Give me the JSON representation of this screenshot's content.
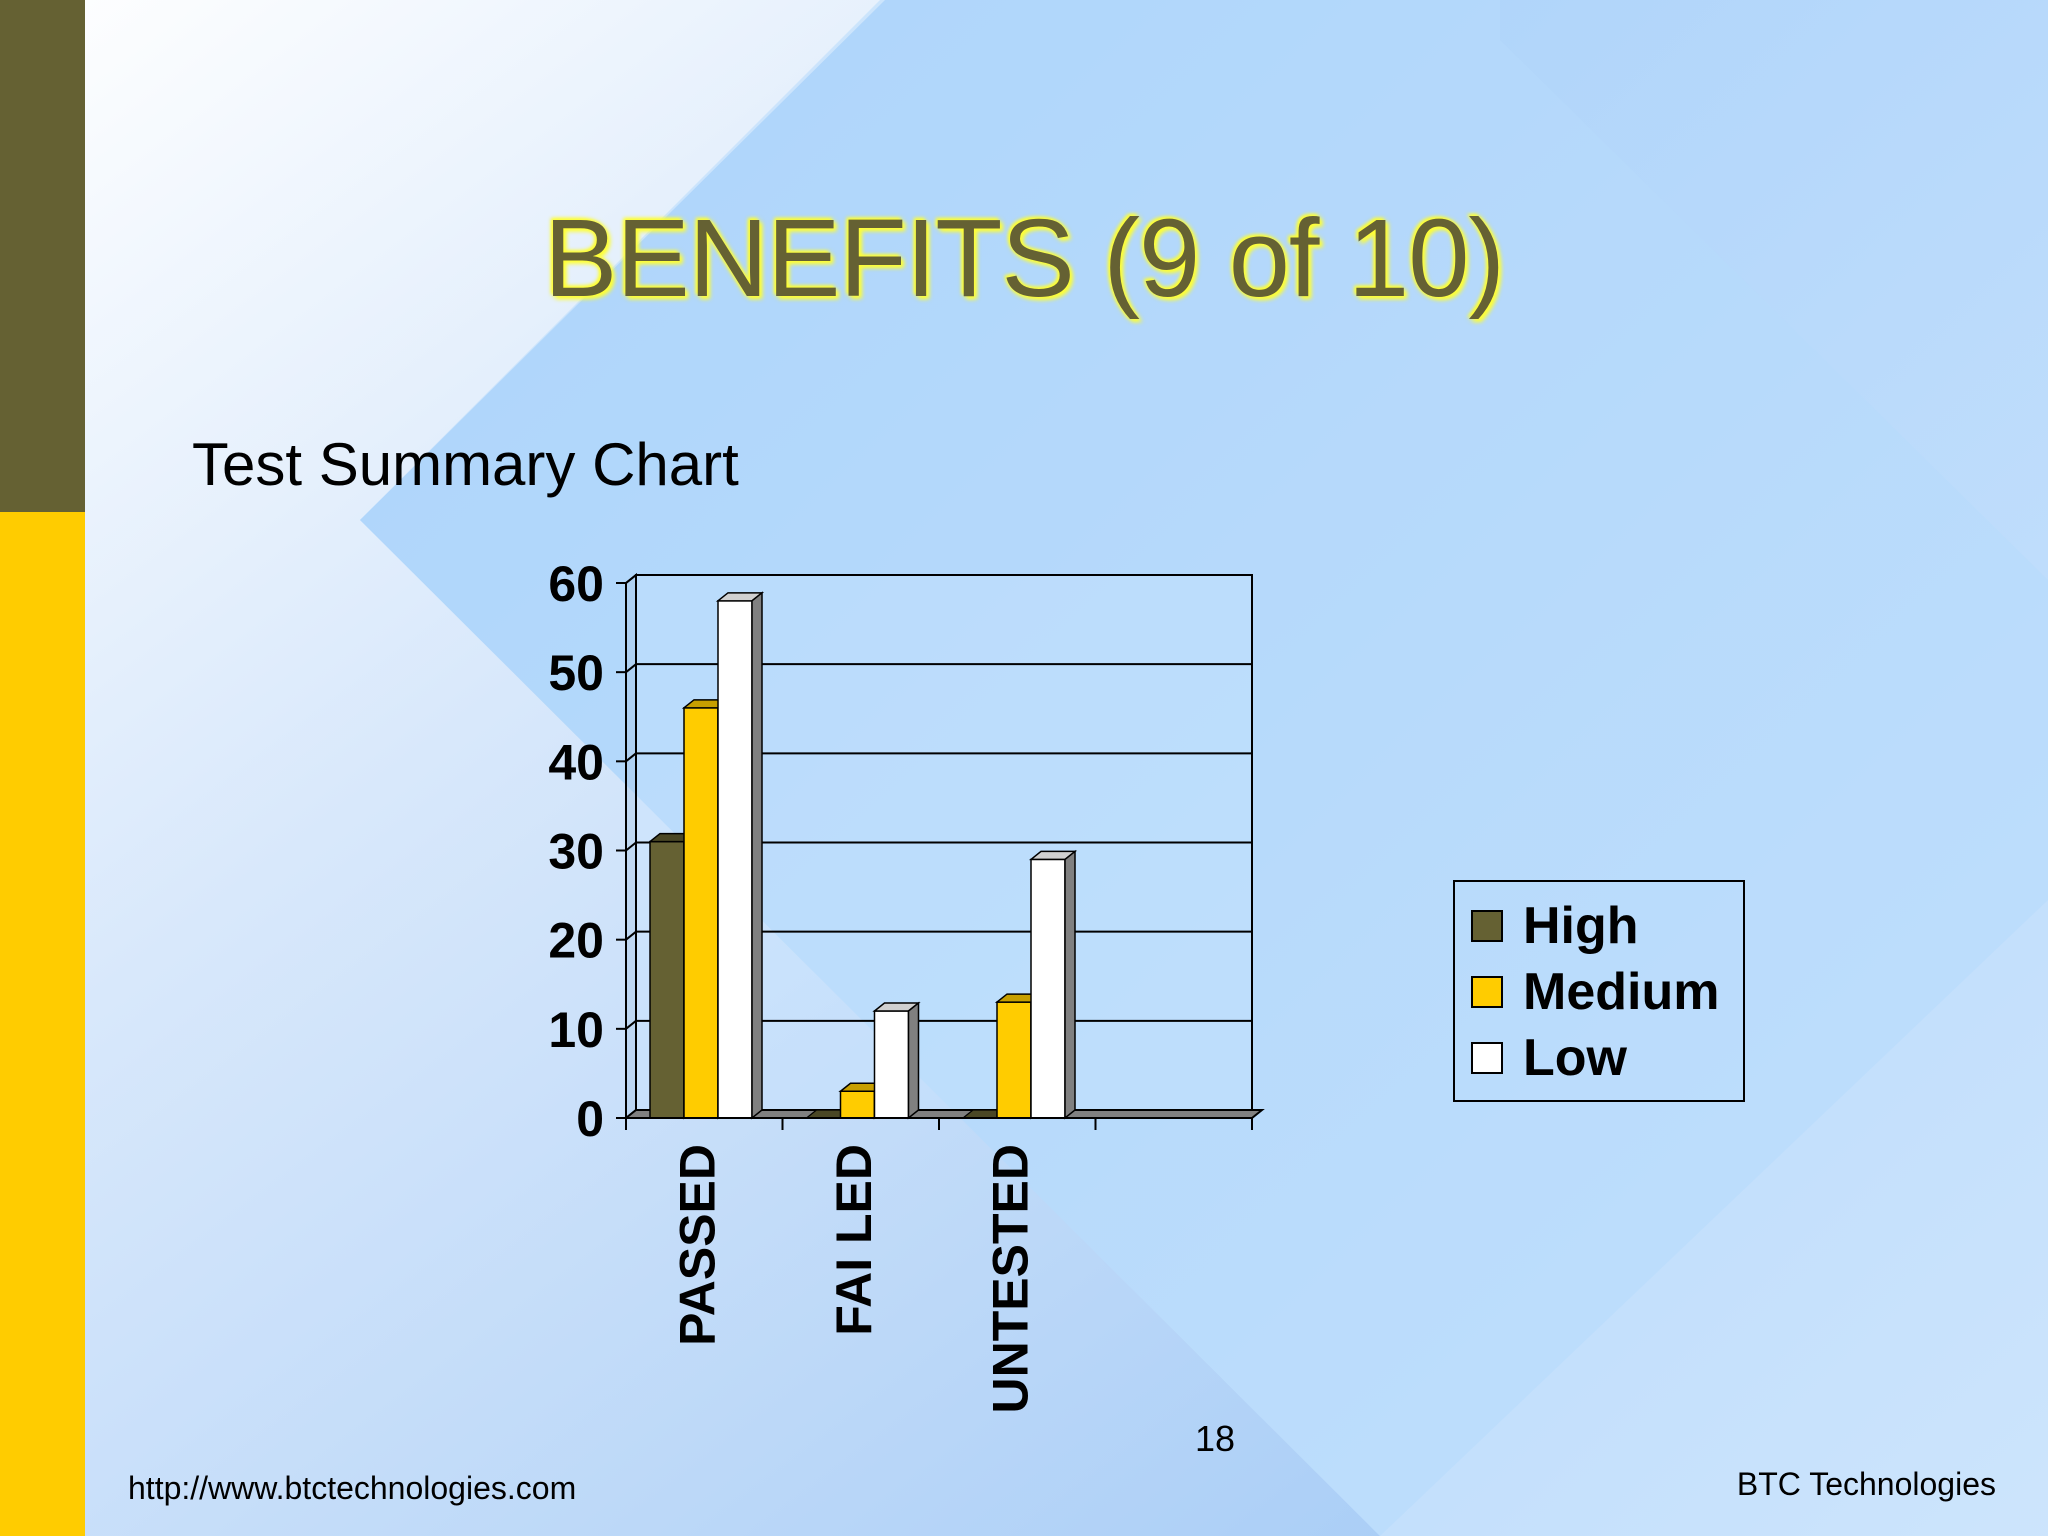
{
  "slide": {
    "title": "BENEFITS (9 of 10)",
    "subtitle": "Test Summary Chart",
    "page_number": "18",
    "footer_url": "http://www.btctechnologies.com",
    "footer_company": "BTC Technologies",
    "colors": {
      "olive": "#656133",
      "gold": "#ffcc00",
      "sky": "#a8d0f8"
    }
  },
  "chart_data": {
    "type": "bar",
    "categories": [
      "PASSED",
      "FAI LED",
      "UNTESTED"
    ],
    "series": [
      {
        "name": "High",
        "values": [
          31,
          0,
          0
        ],
        "color": "#656133"
      },
      {
        "name": "Medium",
        "values": [
          46,
          3,
          13
        ],
        "color": "#ffcc00"
      },
      {
        "name": "Low",
        "values": [
          58,
          12,
          29
        ],
        "color": "#ffffff"
      }
    ],
    "y_ticks": [
      "0",
      "10",
      "20",
      "30",
      "40",
      "50",
      "60"
    ],
    "ylim": [
      0,
      60
    ],
    "grid": true,
    "legend_position": "right",
    "style": "3d-clustered-column"
  }
}
